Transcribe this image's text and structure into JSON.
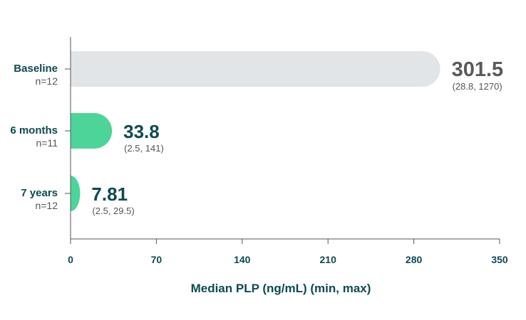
{
  "chart_data": {
    "type": "bar",
    "orientation": "horizontal",
    "title": "",
    "xlabel": "Median PLP (ng/mL) (min, max)",
    "ylabel": "",
    "xlim": [
      0,
      350
    ],
    "xticks": [
      "0",
      "70",
      "140",
      "210",
      "280",
      "350"
    ],
    "grid": false,
    "categories": [
      "Baseline",
      "6 months",
      "7 years"
    ],
    "subtitles": [
      "n=12",
      "n=11",
      "n=12"
    ],
    "values": [
      301.5,
      33.8,
      7.81
    ],
    "value_labels": [
      "301.5",
      "33.8",
      "7.81"
    ],
    "ranges": [
      "(28.8, 1270)",
      "(2.5, 141)",
      "(2.5, 29.5)"
    ],
    "colors": [
      "#e1e5e8",
      "#4dd499",
      "#4dd499"
    ],
    "value_label_colors": [
      "#5a5a5a",
      "#0e4a4f",
      "#0e4a4f"
    ]
  },
  "colors": {
    "axis": "#0e4a4f",
    "text": "#0e4a4f",
    "muted": "#555555"
  }
}
